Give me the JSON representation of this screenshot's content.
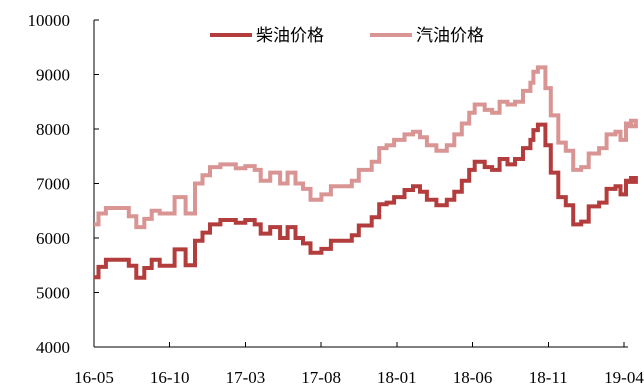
{
  "chart_data": {
    "type": "line",
    "title": "",
    "xlabel": "",
    "ylabel": "",
    "ylim": [
      4000,
      10000
    ],
    "yticks": [
      4000,
      5000,
      6000,
      7000,
      8000,
      9000,
      10000
    ],
    "xtick_labels": [
      "16-05",
      "16-10",
      "17-03",
      "17-08",
      "18-01",
      "18-06",
      "18-11",
      "19-04"
    ],
    "legend_position": "top",
    "grid": false,
    "step": true,
    "series": [
      {
        "name": "柴油价格",
        "color": "#b33c3c",
        "points": [
          [
            "2016-05-01",
            5280
          ],
          [
            "2016-05-10",
            5470
          ],
          [
            "2016-05-25",
            5600
          ],
          [
            "2016-07-10",
            5490
          ],
          [
            "2016-07-25",
            5270
          ],
          [
            "2016-08-10",
            5450
          ],
          [
            "2016-08-25",
            5600
          ],
          [
            "2016-09-10",
            5490
          ],
          [
            "2016-10-10",
            5790
          ],
          [
            "2016-11-01",
            5500
          ],
          [
            "2016-11-20",
            5950
          ],
          [
            "2016-12-05",
            6100
          ],
          [
            "2016-12-20",
            6250
          ],
          [
            "2017-01-10",
            6330
          ],
          [
            "2017-02-10",
            6280
          ],
          [
            "2017-03-01",
            6330
          ],
          [
            "2017-03-20",
            6250
          ],
          [
            "2017-04-01",
            6080
          ],
          [
            "2017-04-20",
            6200
          ],
          [
            "2017-05-10",
            6000
          ],
          [
            "2017-05-25",
            6200
          ],
          [
            "2017-06-10",
            6000
          ],
          [
            "2017-06-25",
            5900
          ],
          [
            "2017-07-10",
            5730
          ],
          [
            "2017-08-01",
            5800
          ],
          [
            "2017-08-20",
            5950
          ],
          [
            "2017-09-10",
            5950
          ],
          [
            "2017-10-01",
            6050
          ],
          [
            "2017-10-15",
            6230
          ],
          [
            "2017-11-10",
            6380
          ],
          [
            "2017-11-25",
            6620
          ],
          [
            "2017-12-10",
            6650
          ],
          [
            "2017-12-25",
            6750
          ],
          [
            "2018-01-15",
            6880
          ],
          [
            "2018-02-01",
            6950
          ],
          [
            "2018-02-15",
            6850
          ],
          [
            "2018-03-01",
            6700
          ],
          [
            "2018-03-20",
            6600
          ],
          [
            "2018-04-10",
            6700
          ],
          [
            "2018-04-25",
            6850
          ],
          [
            "2018-05-10",
            7050
          ],
          [
            "2018-05-25",
            7250
          ],
          [
            "2018-06-05",
            7400
          ],
          [
            "2018-06-25",
            7300
          ],
          [
            "2018-07-10",
            7250
          ],
          [
            "2018-07-25",
            7450
          ],
          [
            "2018-08-10",
            7350
          ],
          [
            "2018-08-25",
            7450
          ],
          [
            "2018-09-10",
            7650
          ],
          [
            "2018-09-25",
            7800
          ],
          [
            "2018-10-01",
            7980
          ],
          [
            "2018-10-10",
            8080
          ],
          [
            "2018-10-25",
            7700
          ],
          [
            "2018-11-05",
            7200
          ],
          [
            "2018-11-20",
            6750
          ],
          [
            "2018-12-05",
            6600
          ],
          [
            "2018-12-20",
            6250
          ],
          [
            "2019-01-05",
            6300
          ],
          [
            "2019-01-20",
            6580
          ],
          [
            "2019-02-10",
            6650
          ],
          [
            "2019-02-25",
            6900
          ],
          [
            "2019-03-15",
            6950
          ],
          [
            "2019-03-25",
            6800
          ],
          [
            "2019-04-05",
            7050
          ],
          [
            "2019-04-15",
            7100
          ],
          [
            "2019-04-25",
            7030
          ]
        ]
      },
      {
        "name": "汽油价格",
        "color": "#d99594",
        "points": [
          [
            "2016-05-01",
            6250
          ],
          [
            "2016-05-10",
            6450
          ],
          [
            "2016-05-25",
            6550
          ],
          [
            "2016-07-10",
            6400
          ],
          [
            "2016-07-25",
            6200
          ],
          [
            "2016-08-10",
            6350
          ],
          [
            "2016-08-25",
            6500
          ],
          [
            "2016-09-10",
            6450
          ],
          [
            "2016-10-10",
            6750
          ],
          [
            "2016-11-01",
            6450
          ],
          [
            "2016-11-20",
            7000
          ],
          [
            "2016-12-05",
            7150
          ],
          [
            "2016-12-20",
            7300
          ],
          [
            "2017-01-10",
            7350
          ],
          [
            "2017-02-10",
            7280
          ],
          [
            "2017-03-01",
            7320
          ],
          [
            "2017-03-20",
            7250
          ],
          [
            "2017-04-01",
            7050
          ],
          [
            "2017-04-20",
            7200
          ],
          [
            "2017-05-10",
            7000
          ],
          [
            "2017-05-25",
            7200
          ],
          [
            "2017-06-10",
            7000
          ],
          [
            "2017-06-25",
            6900
          ],
          [
            "2017-07-10",
            6700
          ],
          [
            "2017-08-01",
            6800
          ],
          [
            "2017-08-20",
            6950
          ],
          [
            "2017-09-10",
            6950
          ],
          [
            "2017-10-01",
            7050
          ],
          [
            "2017-10-15",
            7250
          ],
          [
            "2017-11-10",
            7400
          ],
          [
            "2017-11-25",
            7650
          ],
          [
            "2017-12-10",
            7700
          ],
          [
            "2017-12-25",
            7800
          ],
          [
            "2018-01-15",
            7900
          ],
          [
            "2018-02-01",
            7950
          ],
          [
            "2018-02-15",
            7850
          ],
          [
            "2018-03-01",
            7700
          ],
          [
            "2018-03-20",
            7600
          ],
          [
            "2018-04-10",
            7700
          ],
          [
            "2018-04-25",
            7900
          ],
          [
            "2018-05-10",
            8100
          ],
          [
            "2018-05-25",
            8300
          ],
          [
            "2018-06-05",
            8450
          ],
          [
            "2018-06-25",
            8350
          ],
          [
            "2018-07-10",
            8300
          ],
          [
            "2018-07-25",
            8500
          ],
          [
            "2018-08-10",
            8450
          ],
          [
            "2018-08-25",
            8500
          ],
          [
            "2018-09-10",
            8700
          ],
          [
            "2018-09-25",
            8850
          ],
          [
            "2018-10-01",
            9050
          ],
          [
            "2018-10-10",
            9130
          ],
          [
            "2018-10-25",
            8750
          ],
          [
            "2018-11-05",
            8250
          ],
          [
            "2018-11-20",
            7750
          ],
          [
            "2018-12-05",
            7600
          ],
          [
            "2018-12-20",
            7250
          ],
          [
            "2019-01-05",
            7300
          ],
          [
            "2019-01-20",
            7550
          ],
          [
            "2019-02-10",
            7650
          ],
          [
            "2019-02-25",
            7900
          ],
          [
            "2019-03-15",
            7950
          ],
          [
            "2019-03-25",
            7800
          ],
          [
            "2019-04-05",
            8100
          ],
          [
            "2019-04-15",
            8150
          ],
          [
            "2019-04-25",
            8050
          ]
        ]
      }
    ]
  }
}
